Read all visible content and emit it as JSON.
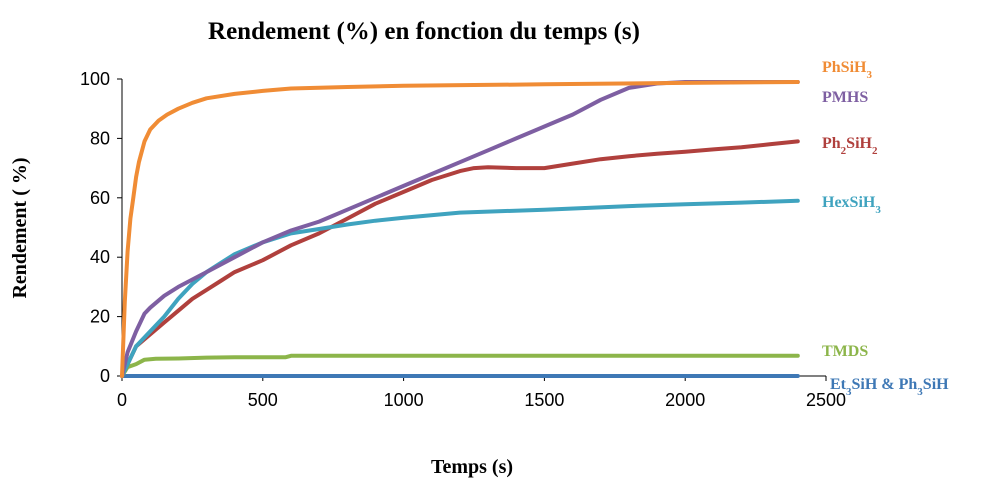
{
  "chart_data": {
    "type": "line",
    "title": "Rendement (%) en fonction du temps (s)",
    "xlabel": "Temps (s)",
    "ylabel": "Rendement ( %)",
    "xlim": [
      0,
      2500
    ],
    "ylim": [
      0,
      100
    ],
    "x_ticks": [
      0,
      500,
      1000,
      1500,
      2000,
      2500
    ],
    "y_ticks": [
      0,
      20,
      40,
      60,
      80,
      100
    ],
    "grid": false,
    "legend": "labels at right end of each series",
    "series": [
      {
        "name": "PhSiH3",
        "label_main": "PhSiH",
        "label_sub": "3",
        "color": "#F08C35",
        "points": [
          [
            0,
            0
          ],
          [
            10,
            25
          ],
          [
            20,
            42
          ],
          [
            30,
            53
          ],
          [
            40,
            60
          ],
          [
            50,
            67
          ],
          [
            60,
            72
          ],
          [
            80,
            79
          ],
          [
            100,
            83
          ],
          [
            130,
            86
          ],
          [
            160,
            88
          ],
          [
            200,
            90
          ],
          [
            250,
            92
          ],
          [
            300,
            93.5
          ],
          [
            400,
            95
          ],
          [
            500,
            96
          ],
          [
            600,
            96.8
          ],
          [
            800,
            97.3
          ],
          [
            1000,
            97.7
          ],
          [
            1500,
            98.2
          ],
          [
            2000,
            98.7
          ],
          [
            2400,
            99
          ]
        ]
      },
      {
        "name": "PMHS",
        "label_main": "PMHS",
        "label_sub": "",
        "color": "#7E5FA2",
        "points": [
          [
            0,
            0
          ],
          [
            20,
            8
          ],
          [
            50,
            15
          ],
          [
            80,
            21
          ],
          [
            100,
            23
          ],
          [
            150,
            27
          ],
          [
            200,
            30
          ],
          [
            300,
            35
          ],
          [
            400,
            40
          ],
          [
            500,
            45
          ],
          [
            600,
            49
          ],
          [
            700,
            52
          ],
          [
            800,
            56
          ],
          [
            900,
            60
          ],
          [
            1000,
            64
          ],
          [
            1100,
            68
          ],
          [
            1200,
            72
          ],
          [
            1300,
            76
          ],
          [
            1400,
            80
          ],
          [
            1500,
            84
          ],
          [
            1600,
            88
          ],
          [
            1700,
            93
          ],
          [
            1800,
            97
          ],
          [
            1900,
            98.5
          ],
          [
            2000,
            99
          ],
          [
            2400,
            99
          ]
        ]
      },
      {
        "name": "Ph2SiH2",
        "label_main": "Ph",
        "label_sub": "2",
        "label_main2": "SiH",
        "label_sub2": "2",
        "color": "#B0403D",
        "points": [
          [
            0,
            0
          ],
          [
            50,
            10
          ],
          [
            100,
            14
          ],
          [
            150,
            18
          ],
          [
            200,
            22
          ],
          [
            250,
            26
          ],
          [
            300,
            29
          ],
          [
            350,
            32
          ],
          [
            400,
            35
          ],
          [
            500,
            39
          ],
          [
            600,
            44
          ],
          [
            700,
            48
          ],
          [
            800,
            53
          ],
          [
            900,
            58
          ],
          [
            1000,
            62
          ],
          [
            1100,
            66
          ],
          [
            1200,
            69
          ],
          [
            1250,
            70
          ],
          [
            1300,
            70.3
          ],
          [
            1400,
            70
          ],
          [
            1500,
            70
          ],
          [
            1600,
            71.5
          ],
          [
            1700,
            73
          ],
          [
            1800,
            74
          ],
          [
            1900,
            74.8
          ],
          [
            2000,
            75.5
          ],
          [
            2100,
            76.3
          ],
          [
            2200,
            77
          ],
          [
            2300,
            78
          ],
          [
            2400,
            79
          ]
        ]
      },
      {
        "name": "HexSiH3",
        "label_main": "HexSiH",
        "label_sub": "3",
        "color": "#3FA3BF",
        "points": [
          [
            0,
            0
          ],
          [
            50,
            10
          ],
          [
            100,
            15
          ],
          [
            150,
            20
          ],
          [
            200,
            26
          ],
          [
            250,
            31
          ],
          [
            300,
            35
          ],
          [
            350,
            38
          ],
          [
            400,
            41
          ],
          [
            500,
            45
          ],
          [
            600,
            48
          ],
          [
            700,
            49.5
          ],
          [
            800,
            51
          ],
          [
            900,
            52.3
          ],
          [
            1000,
            53.3
          ],
          [
            1200,
            55
          ],
          [
            1500,
            56
          ],
          [
            1800,
            57.2
          ],
          [
            2000,
            57.8
          ],
          [
            2200,
            58.4
          ],
          [
            2400,
            59
          ]
        ]
      },
      {
        "name": "TMDS",
        "label_main": "TMDS",
        "label_sub": "",
        "color": "#8CB54A",
        "points": [
          [
            0,
            0
          ],
          [
            20,
            3
          ],
          [
            50,
            4
          ],
          [
            80,
            5.5
          ],
          [
            120,
            5.8
          ],
          [
            200,
            5.9
          ],
          [
            300,
            6.2
          ],
          [
            400,
            6.3
          ],
          [
            580,
            6.3
          ],
          [
            600,
            6.8
          ],
          [
            1000,
            6.8
          ],
          [
            2400,
            6.8
          ]
        ]
      },
      {
        "name": "Et3SiH & Ph3SiH",
        "label_parts": [
          [
            "Et",
            ""
          ],
          [
            "3",
            "sub"
          ],
          [
            "SiH & Ph",
            ""
          ],
          [
            "3",
            "sub"
          ],
          [
            "SiH",
            ""
          ]
        ],
        "color": "#3E78B5",
        "points": [
          [
            0,
            0
          ],
          [
            2400,
            0
          ]
        ]
      }
    ]
  }
}
